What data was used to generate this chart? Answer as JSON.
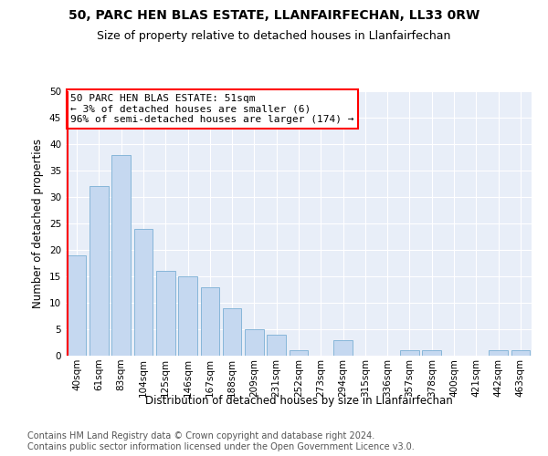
{
  "title": "50, PARC HEN BLAS ESTATE, LLANFAIRFECHAN, LL33 0RW",
  "subtitle": "Size of property relative to detached houses in Llanfairfechan",
  "xlabel": "Distribution of detached houses by size in Llanfairfechan",
  "ylabel": "Number of detached properties",
  "categories": [
    "40sqm",
    "61sqm",
    "83sqm",
    "104sqm",
    "125sqm",
    "146sqm",
    "167sqm",
    "188sqm",
    "209sqm",
    "231sqm",
    "252sqm",
    "273sqm",
    "294sqm",
    "315sqm",
    "336sqm",
    "357sqm",
    "378sqm",
    "400sqm",
    "421sqm",
    "442sqm",
    "463sqm"
  ],
  "values": [
    19,
    32,
    38,
    24,
    16,
    15,
    13,
    9,
    5,
    4,
    1,
    0,
    3,
    0,
    0,
    1,
    1,
    0,
    0,
    1,
    1
  ],
  "bar_color": "#c5d8f0",
  "bar_edge_color": "#7aafd4",
  "annotation_box_text": "50 PARC HEN BLAS ESTATE: 51sqm\n← 3% of detached houses are smaller (6)\n96% of semi-detached houses are larger (174) →",
  "annotation_box_color": "white",
  "annotation_box_edge_color": "red",
  "marker_line_color": "red",
  "ylim": [
    0,
    50
  ],
  "yticks": [
    0,
    5,
    10,
    15,
    20,
    25,
    30,
    35,
    40,
    45,
    50
  ],
  "footer_line1": "Contains HM Land Registry data © Crown copyright and database right 2024.",
  "footer_line2": "Contains public sector information licensed under the Open Government Licence v3.0.",
  "bg_color": "#ffffff",
  "plot_bg_color": "#e8eef8",
  "title_fontsize": 10,
  "subtitle_fontsize": 9,
  "axis_label_fontsize": 8.5,
  "tick_fontsize": 7.5,
  "annotation_fontsize": 8,
  "footer_fontsize": 7
}
